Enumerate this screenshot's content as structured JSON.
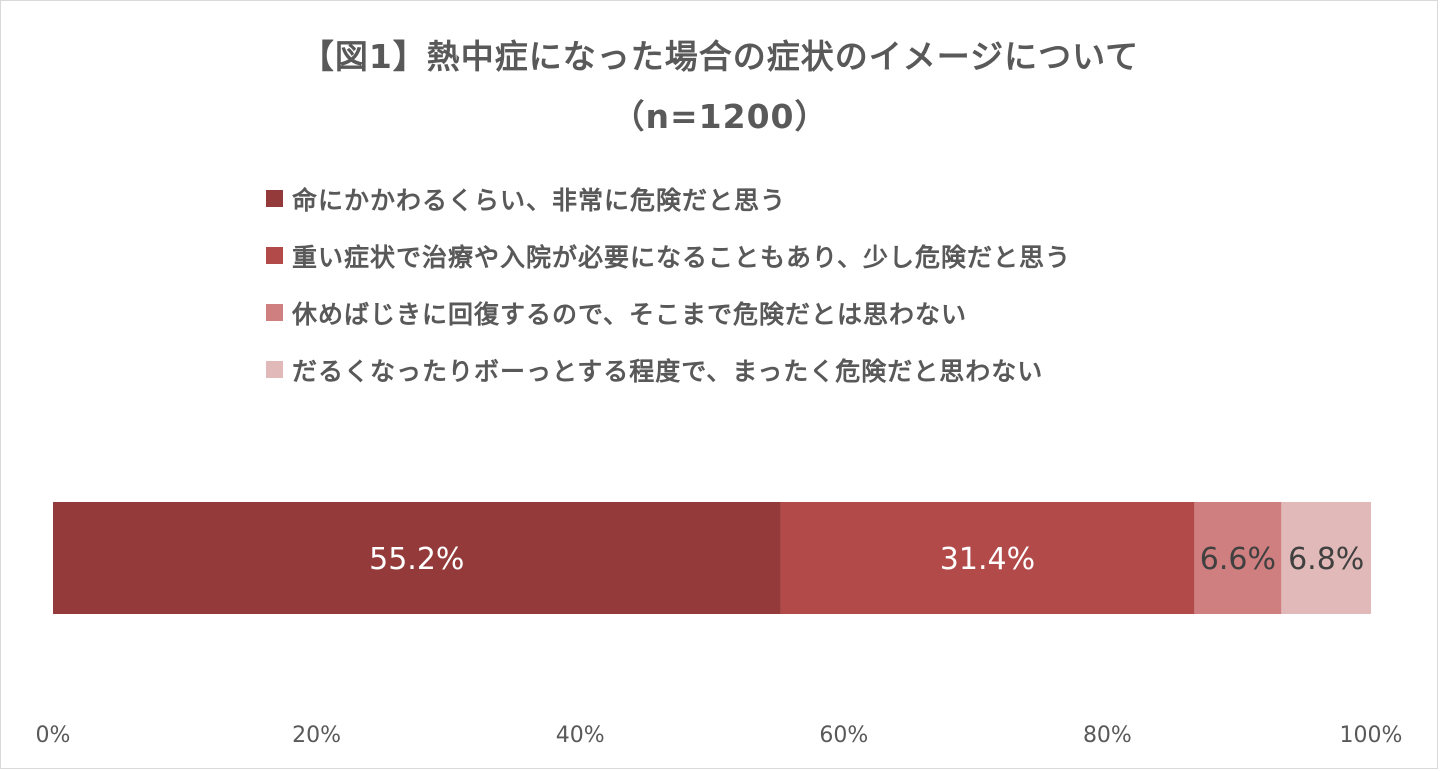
{
  "chart_data": {
    "type": "bar",
    "orientation": "horizontal",
    "stacked": "percent",
    "title_line1": "【図1】熱中症になった場合の症状のイメージについて",
    "title_line2": "（n=1200）",
    "xlim": [
      0,
      100
    ],
    "x_ticks": [
      "0%",
      "20%",
      "40%",
      "60%",
      "80%",
      "100%"
    ],
    "x_tick_values": [
      0,
      20,
      40,
      60,
      80,
      100
    ],
    "grid": false,
    "legend_position": "top-left",
    "series": [
      {
        "name": "命にかかわるくらい、非常に危険だと思う",
        "value": 55.2,
        "label": "55.2%",
        "color": "#943a3a",
        "label_color": "#ffffff"
      },
      {
        "name": "重い症状で治療や入院が必要になることもあり、少し危険だと思う",
        "value": 31.4,
        "label": "31.4%",
        "color": "#b24a49",
        "label_color": "#ffffff"
      },
      {
        "name": "休めばじきに回復するので、そこまで危険だとは思わない",
        "value": 6.6,
        "label": "6.6%",
        "color": "#cf7f7f",
        "label_color": "#404040"
      },
      {
        "name": "だるくなったりボーっとする程度で、まったく危険だと思わない",
        "value": 6.8,
        "label": "6.8%",
        "color": "#e2b9b9",
        "label_color": "#404040"
      }
    ]
  }
}
